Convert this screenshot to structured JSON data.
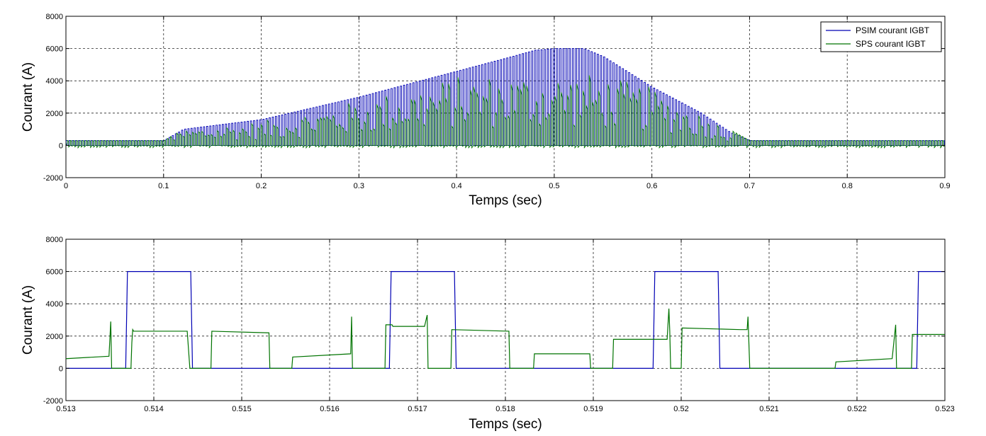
{
  "colors": {
    "psim": "#0000b4",
    "sps": "#007300",
    "grid": "#000000",
    "background": "#ffffff"
  },
  "chart_data": [
    {
      "type": "line",
      "xlabel": "Temps (sec)",
      "ylabel": "Courant (A)",
      "xlim": [
        0,
        0.9
      ],
      "ylim": [
        -2000,
        8000
      ],
      "xticks": [
        "0",
        "0.1",
        "0.2",
        "0.3",
        "0.4",
        "0.5",
        "0.6",
        "0.7",
        "0.8",
        "0.9"
      ],
      "yticks": [
        "-2000",
        "0",
        "2000",
        "4000",
        "6000",
        "8000"
      ],
      "grid": true,
      "legend": {
        "placement": "top-right",
        "entries": [
          "PSIM courant IGBT",
          "SPS courant IGBT"
        ]
      },
      "series": [
        {
          "name": "PSIM courant IGBT",
          "color": "#0000b4",
          "style": "pulsed switching current; envelope of peaks",
          "x": [
            0,
            0.1,
            0.12,
            0.2,
            0.3,
            0.4,
            0.45,
            0.48,
            0.5,
            0.53,
            0.55,
            0.6,
            0.65,
            0.68,
            0.7,
            0.8,
            0.9
          ],
          "y": [
            300,
            300,
            1000,
            1600,
            3000,
            4600,
            5400,
            5900,
            6000,
            6000,
            5500,
            3600,
            2000,
            800,
            300,
            300,
            300
          ]
        },
        {
          "name": "SPS courant IGBT",
          "color": "#007300",
          "style": "pulsed switching current; envelope of peaks",
          "x": [
            0,
            0.1,
            0.12,
            0.2,
            0.3,
            0.4,
            0.48,
            0.53,
            0.56,
            0.6,
            0.65,
            0.7,
            0.8,
            0.9
          ],
          "y": [
            300,
            300,
            1000,
            1500,
            2800,
            4300,
            4500,
            4500,
            4200,
            3600,
            2000,
            300,
            300,
            300
          ]
        }
      ]
    },
    {
      "type": "line",
      "xlabel": "Temps (sec)",
      "ylabel": "Courant (A)",
      "xlim": [
        0.513,
        0.523
      ],
      "ylim": [
        -2000,
        8000
      ],
      "xticks": [
        "0.513",
        "0.514",
        "0.515",
        "0.516",
        "0.517",
        "0.518",
        "0.519",
        "0.52",
        "0.521",
        "0.522",
        "0.523"
      ],
      "yticks": [
        "-2000",
        "0",
        "2000",
        "4000",
        "6000",
        "8000"
      ],
      "grid": true,
      "series": [
        {
          "name": "PSIM courant IGBT",
          "color": "#0000b4",
          "x": [
            0.513,
            0.51368,
            0.5137,
            0.51442,
            0.51444,
            0.51668,
            0.5167,
            0.51742,
            0.51744,
            0.51968,
            0.5197,
            0.52042,
            0.52044,
            0.52268,
            0.5227,
            0.523
          ],
          "y": [
            0,
            0,
            6000,
            6000,
            0,
            0,
            6000,
            6000,
            0,
            0,
            6000,
            6000,
            0,
            0,
            6000,
            6000
          ]
        },
        {
          "name": "SPS courant IGBT",
          "color": "#007300",
          "x": [
            0.513,
            0.51349,
            0.51351,
            0.51352,
            0.51374,
            0.51375,
            0.51376,
            0.51377,
            0.51438,
            0.51441,
            0.51465,
            0.51466,
            0.51531,
            0.51532,
            0.51557,
            0.51558,
            0.51624,
            0.51625,
            0.51626,
            0.51663,
            0.51664,
            0.51671,
            0.51672,
            0.51708,
            0.51711,
            0.51712,
            0.51713,
            0.51738,
            0.51739,
            0.51804,
            0.51805,
            0.51832,
            0.51833,
            0.51896,
            0.51897,
            0.51922,
            0.51923,
            0.51984,
            0.51986,
            0.51987,
            0.51988,
            0.52,
            0.52001,
            0.52067,
            0.52075,
            0.52076,
            0.52078,
            0.52079,
            0.52084,
            0.52085,
            0.52167,
            0.52168,
            0.52175,
            0.52176,
            0.5224,
            0.52244,
            0.52245,
            0.52246,
            0.52262,
            0.52263,
            0.52286,
            0.52287,
            0.523
          ],
          "y": [
            600,
            750,
            2900,
            0,
            0,
            1600,
            2400,
            2300,
            2300,
            0,
            0,
            2300,
            2200,
            0,
            0,
            700,
            900,
            3200,
            0,
            0,
            2700,
            2700,
            2600,
            2600,
            3300,
            0,
            0,
            0,
            2400,
            2300,
            0,
            0,
            900,
            900,
            0,
            0,
            1800,
            1800,
            3700,
            2300,
            0,
            0,
            2500,
            2400,
            2400,
            3200,
            0,
            0,
            0,
            0,
            0,
            0,
            0,
            400,
            600,
            2700,
            0,
            0,
            0,
            2100,
            2100,
            2100,
            2100
          ]
        }
      ]
    }
  ]
}
